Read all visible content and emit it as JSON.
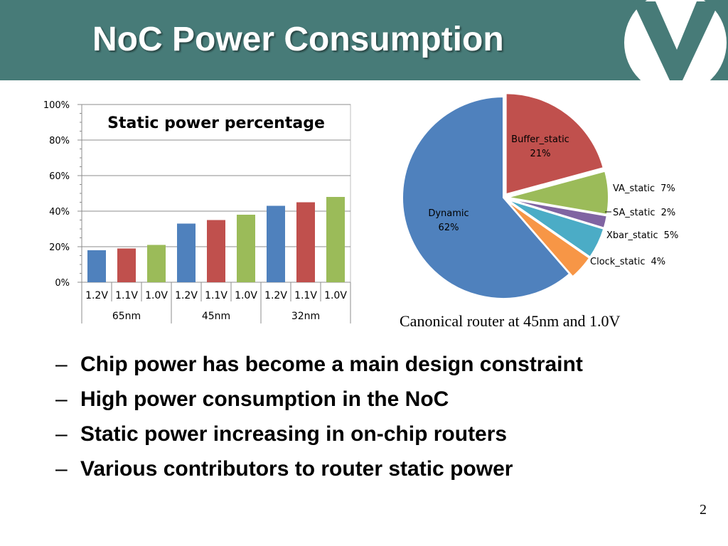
{
  "slide": {
    "title": "NoC Power Consumption",
    "caption": "Canonical router at 45nm and 1.0V",
    "bullets": [
      "Chip power has become a main design constraint",
      "High power consumption in the NoC",
      "Static power increasing in on-chip routers",
      "Various contributors to router static power"
    ],
    "bullet_marker": "–",
    "page_number": "2",
    "header_color": "#477b78"
  },
  "chart_data": [
    {
      "type": "bar",
      "title": "Static power percentage",
      "categories": [
        "1.2V",
        "1.1V",
        "1.0V",
        "1.2V",
        "1.1V",
        "1.0V",
        "1.2V",
        "1.1V",
        "1.0V"
      ],
      "groups": [
        "65nm",
        "45nm",
        "32nm"
      ],
      "values": [
        18,
        19,
        21,
        33,
        35,
        38,
        43,
        45,
        48
      ],
      "colors": [
        "#4f81bd",
        "#c0504d",
        "#9bbb59",
        "#4f81bd",
        "#c0504d",
        "#9bbb59",
        "#4f81bd",
        "#c0504d",
        "#9bbb59"
      ],
      "ylim": [
        0,
        100
      ],
      "yticks": [
        "0%",
        "20%",
        "40%",
        "60%",
        "80%",
        "100%"
      ],
      "grid": true
    },
    {
      "type": "pie",
      "slices": [
        {
          "label": "Buffer_static",
          "value": 21,
          "pct": "21%",
          "color": "#c0504d"
        },
        {
          "label": "VA_static",
          "value": 7,
          "pct": "7%",
          "color": "#9bbb59"
        },
        {
          "label": "SA_static",
          "value": 2,
          "pct": "2%",
          "color": "#8064a2"
        },
        {
          "label": "Xbar_static",
          "value": 5,
          "pct": "5%",
          "color": "#4bacc6"
        },
        {
          "label": "Clock_static",
          "value": 4,
          "pct": "4%",
          "color": "#f79646"
        },
        {
          "label": "Dynamic",
          "value": 62,
          "pct": "62%",
          "color": "#4f81bd"
        }
      ]
    }
  ]
}
